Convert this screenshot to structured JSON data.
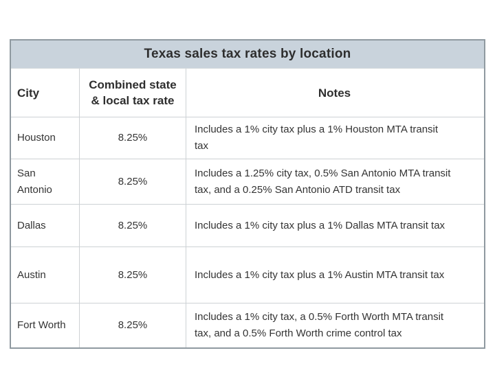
{
  "table": {
    "title": "Texas sales tax rates by location",
    "columns": {
      "city": "City",
      "rate": "Combined state\n& local tax rate",
      "notes": "Notes"
    },
    "rows": [
      {
        "city": "Houston",
        "rate": "8.25%",
        "notes": "Includes a 1% city tax plus a 1% Houston MTA transit\ntax"
      },
      {
        "city": "San\nAntonio",
        "rate": "8.25%",
        "notes": "Includes a 1.25% city tax, 0.5% San Antonio MTA transit\ntax, and a 0.25% San Antonio ATD transit tax"
      },
      {
        "city": "Dallas",
        "rate": "8.25%",
        "notes": "Includes a 1% city tax plus a 1% Dallas MTA transit tax"
      },
      {
        "city": "Austin",
        "rate": "8.25%",
        "notes": "Includes a 1% city tax plus a 1% Austin MTA transit tax"
      },
      {
        "city": "Fort Worth",
        "rate": "8.25%",
        "notes": "Includes a 1% city tax, a 0.5% Forth Worth MTA transit\ntax, and a 0.5% Forth Worth crime control tax"
      }
    ]
  },
  "colors": {
    "title_background": "#c9d3dc",
    "outer_border": "#8f99a0",
    "grid_line": "#cdd1d4",
    "text": "#333333"
  },
  "chart_data": {
    "type": "table",
    "title": "Texas sales tax rates by location",
    "columns": [
      "City",
      "Combined state & local tax rate",
      "Notes"
    ],
    "rows": [
      [
        "Houston",
        "8.25%",
        "Includes a 1% city tax plus a 1% Houston MTA transit tax"
      ],
      [
        "San Antonio",
        "8.25%",
        "Includes a 1.25% city tax, 0.5% San Antonio MTA transit tax, and a 0.25% San Antonio ATD transit tax"
      ],
      [
        "Dallas",
        "8.25%",
        "Includes a 1% city tax plus a 1% Dallas MTA transit tax"
      ],
      [
        "Austin",
        "8.25%",
        "Includes a 1% city tax plus a 1% Austin MTA transit tax"
      ],
      [
        "Fort Worth",
        "8.25%",
        "Includes a 1% city tax, a 0.5% Forth Worth MTA transit tax, and a 0.5% Forth Worth crime control tax"
      ]
    ]
  }
}
